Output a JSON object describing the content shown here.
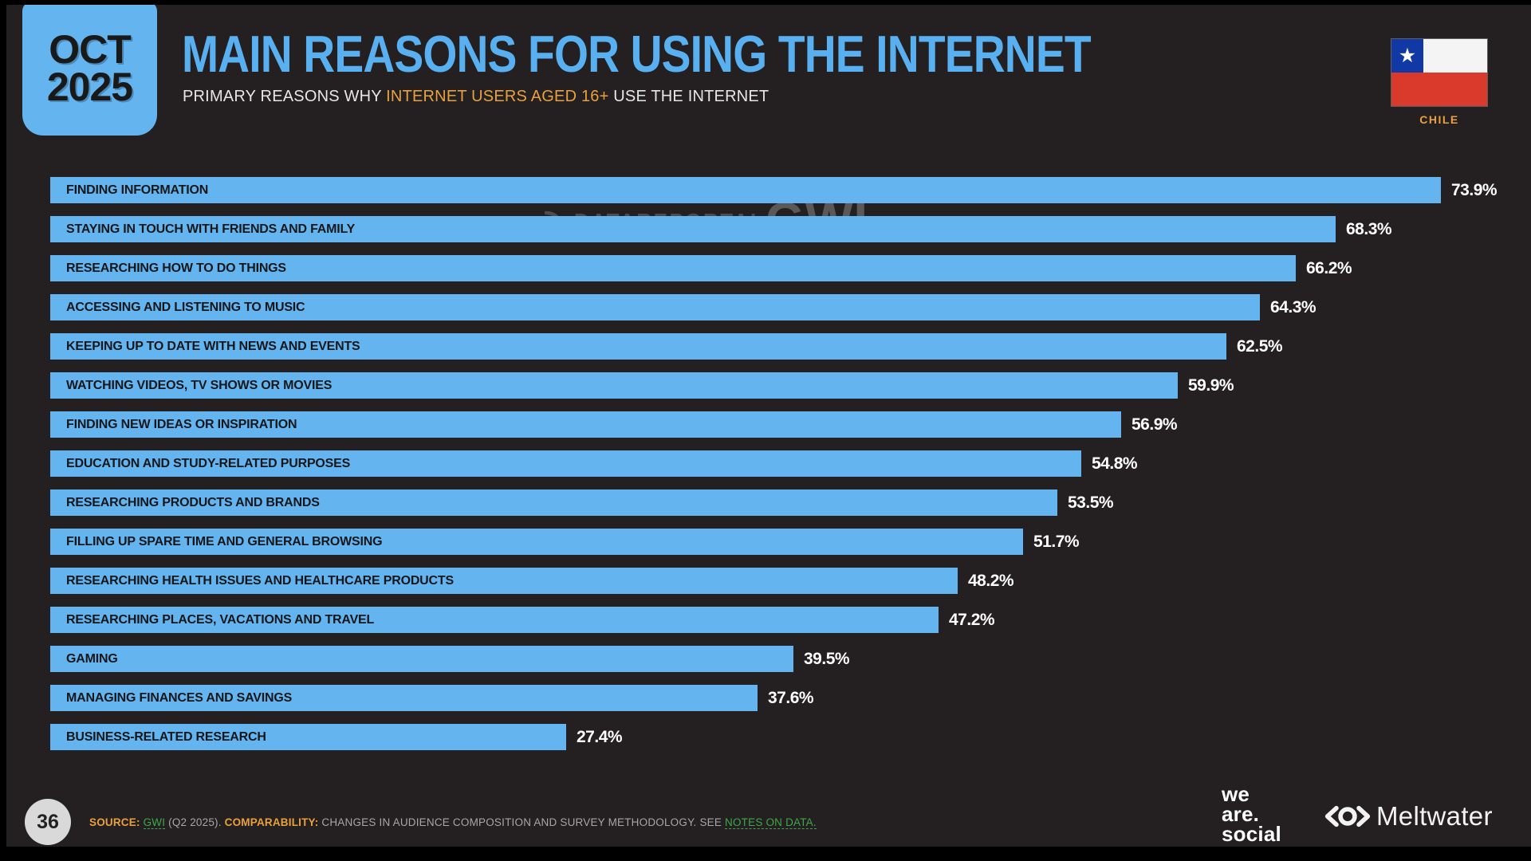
{
  "header": {
    "date_badge": {
      "month": "OCT",
      "year": "2025"
    },
    "title": "MAIN REASONS FOR USING THE INTERNET",
    "subtitle_prefix": "PRIMARY REASONS WHY ",
    "subtitle_highlight": "INTERNET USERS AGED 16+",
    "subtitle_suffix": " USE THE INTERNET",
    "country": "CHILE"
  },
  "watermarks": {
    "left": "DATAREPORTAL",
    "right": "GWI."
  },
  "chart_data": {
    "type": "bar",
    "orientation": "horizontal",
    "unit": "%",
    "xlim": [
      0,
      80
    ],
    "grid": false,
    "legend": false,
    "categories": [
      "FINDING INFORMATION",
      "STAYING IN TOUCH WITH FRIENDS AND FAMILY",
      "RESEARCHING HOW TO DO THINGS",
      "ACCESSING AND LISTENING TO MUSIC",
      "KEEPING UP TO DATE WITH NEWS AND EVENTS",
      "WATCHING VIDEOS, TV SHOWS OR MOVIES",
      "FINDING NEW IDEAS OR INSPIRATION",
      "EDUCATION AND STUDY-RELATED PURPOSES",
      "RESEARCHING PRODUCTS AND BRANDS",
      "FILLING UP SPARE TIME AND GENERAL BROWSING",
      "RESEARCHING HEALTH ISSUES AND HEALTHCARE PRODUCTS",
      "RESEARCHING PLACES, VACATIONS AND TRAVEL",
      "GAMING",
      "MANAGING FINANCES AND SAVINGS",
      "BUSINESS-RELATED RESEARCH"
    ],
    "values": [
      73.9,
      68.3,
      66.2,
      64.3,
      62.5,
      59.9,
      56.9,
      54.8,
      53.5,
      51.7,
      48.2,
      47.2,
      39.5,
      37.6,
      27.4
    ]
  },
  "footer": {
    "page_number": "36",
    "source_label": "SOURCE:",
    "source_link": "GWI",
    "source_detail": "(Q2 2025).",
    "comparability_label": "COMPARABILITY:",
    "comparability_text": "CHANGES IN AUDIENCE COMPOSITION AND SURVEY METHODOLOGY. SEE",
    "notes_link": "NOTES ON DATA.",
    "we_are_social": [
      "we",
      "are.",
      "social"
    ],
    "meltwater": "Meltwater"
  },
  "colors": {
    "page_bg": "#242021",
    "accent_blue": "#64b4f0",
    "title_blue": "#58b0f0",
    "orange": "#e9a13b",
    "green": "#3fa74a",
    "bar_label": "#15171a",
    "value_text": "#ffffff",
    "muted_text": "#a6a6a6",
    "flag_blue": "#1039a6",
    "flag_red": "#d93a2b",
    "flag_white": "#f4f4f4"
  }
}
